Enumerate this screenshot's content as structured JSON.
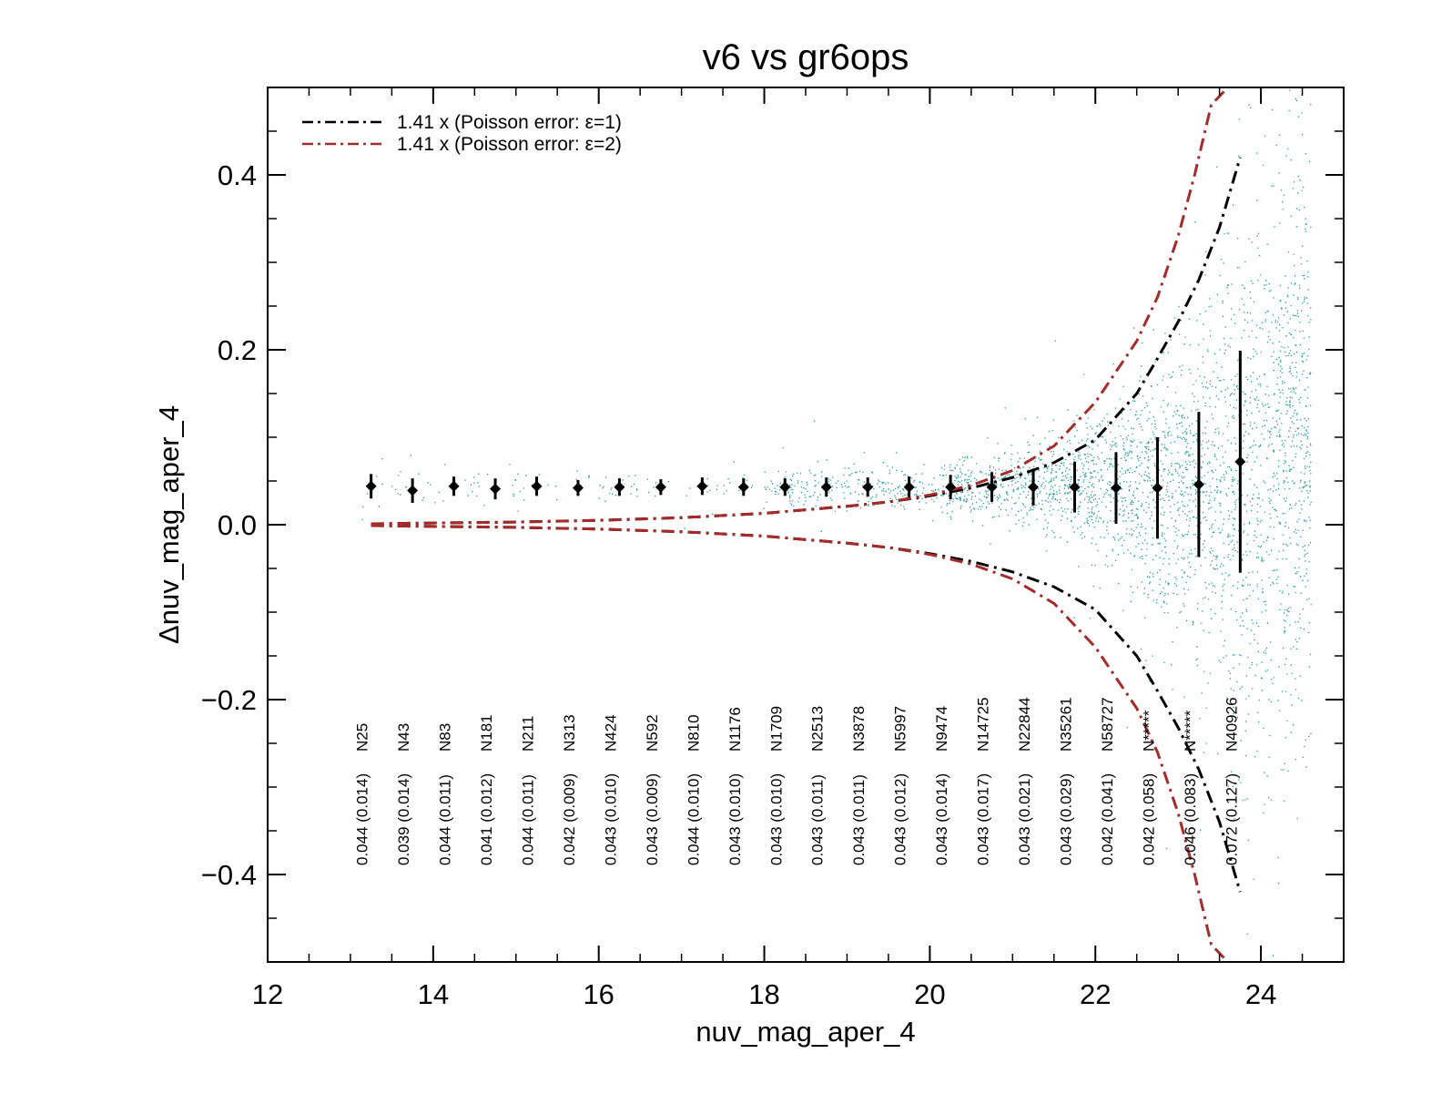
{
  "chart_data": {
    "type": "scatter",
    "title": "v6 vs gr6ops",
    "xlabel": "nuv_mag_aper_4",
    "ylabel": "Δnuv_mag_aper_4",
    "xlim": [
      12,
      25
    ],
    "ylim": [
      -0.5,
      0.5
    ],
    "x_ticks": [
      12,
      14,
      16,
      18,
      20,
      22,
      24
    ],
    "x_tick_labels": [
      "12",
      "14",
      "16",
      "18",
      "20",
      "22",
      "24"
    ],
    "y_ticks": [
      -0.4,
      -0.2,
      0.0,
      0.2,
      0.4
    ],
    "y_tick_labels": [
      "−0.4",
      "−0.2",
      "0.0",
      "0.2",
      "0.4"
    ],
    "x_minor_step": 0.5,
    "y_minor_step": 0.05,
    "grid": false,
    "scatter_color": "#008b8b",
    "legend_position": "top-left",
    "legend": [
      {
        "label": "1.41 x (Poisson error: ε=1)",
        "color": "#000000",
        "style": "dash-dot"
      },
      {
        "label": "1.41 x (Poisson error: ε=2)",
        "color": "#a52a2a",
        "style": "dash-dot"
      }
    ],
    "binned_points": [
      {
        "x": 13.25,
        "y": 0.044,
        "sigma": 0.014,
        "n_label": "N25",
        "label": "0.044 (0.014)"
      },
      {
        "x": 13.75,
        "y": 0.039,
        "sigma": 0.014,
        "n_label": "N43",
        "label": "0.039 (0.014)"
      },
      {
        "x": 14.25,
        "y": 0.044,
        "sigma": 0.011,
        "n_label": "N83",
        "label": "0.044 (0.011)"
      },
      {
        "x": 14.75,
        "y": 0.041,
        "sigma": 0.012,
        "n_label": "N181",
        "label": "0.041 (0.012)"
      },
      {
        "x": 15.25,
        "y": 0.044,
        "sigma": 0.011,
        "n_label": "N211",
        "label": "0.044 (0.011)"
      },
      {
        "x": 15.75,
        "y": 0.042,
        "sigma": 0.009,
        "n_label": "N313",
        "label": "0.042 (0.009)"
      },
      {
        "x": 16.25,
        "y": 0.043,
        "sigma": 0.01,
        "n_label": "N424",
        "label": "0.043 (0.010)"
      },
      {
        "x": 16.75,
        "y": 0.043,
        "sigma": 0.009,
        "n_label": "N592",
        "label": "0.043 (0.009)"
      },
      {
        "x": 17.25,
        "y": 0.044,
        "sigma": 0.01,
        "n_label": "N810",
        "label": "0.044 (0.010)"
      },
      {
        "x": 17.75,
        "y": 0.043,
        "sigma": 0.01,
        "n_label": "N1176",
        "label": "0.043 (0.010)"
      },
      {
        "x": 18.25,
        "y": 0.043,
        "sigma": 0.01,
        "n_label": "N1709",
        "label": "0.043 (0.010)"
      },
      {
        "x": 18.75,
        "y": 0.043,
        "sigma": 0.011,
        "n_label": "N2513",
        "label": "0.043 (0.011)"
      },
      {
        "x": 19.25,
        "y": 0.043,
        "sigma": 0.011,
        "n_label": "N3878",
        "label": "0.043 (0.011)"
      },
      {
        "x": 19.75,
        "y": 0.043,
        "sigma": 0.012,
        "n_label": "N5997",
        "label": "0.043 (0.012)"
      },
      {
        "x": 20.25,
        "y": 0.043,
        "sigma": 0.014,
        "n_label": "N9474",
        "label": "0.043 (0.014)"
      },
      {
        "x": 20.75,
        "y": 0.043,
        "sigma": 0.017,
        "n_label": "N14725",
        "label": "0.043 (0.017)"
      },
      {
        "x": 21.25,
        "y": 0.043,
        "sigma": 0.021,
        "n_label": "N22844",
        "label": "0.043 (0.021)"
      },
      {
        "x": 21.75,
        "y": 0.043,
        "sigma": 0.029,
        "n_label": "N35261",
        "label": "0.043 (0.029)"
      },
      {
        "x": 22.25,
        "y": 0.042,
        "sigma": 0.041,
        "n_label": "N58727",
        "label": "0.042 (0.041)"
      },
      {
        "x": 22.75,
        "y": 0.042,
        "sigma": 0.058,
        "n_label": "N*****",
        "label": "0.042 (0.058)"
      },
      {
        "x": 23.25,
        "y": 0.046,
        "sigma": 0.083,
        "n_label": "N*****",
        "label": "0.046 (0.083)"
      },
      {
        "x": 23.75,
        "y": 0.072,
        "sigma": 0.127,
        "n_label": "N40926",
        "label": "0.072 (0.127)"
      }
    ],
    "poisson_curves": [
      {
        "name": "1.41 x (Poisson error: ε=1)",
        "color": "#000000",
        "x": [
          13.25,
          14.0,
          15.0,
          16.0,
          17.0,
          18.0,
          19.0,
          19.5,
          20.0,
          20.5,
          21.0,
          21.5,
          22.0,
          22.5,
          22.75,
          23.0,
          23.25,
          23.5,
          23.75
        ],
        "y": [
          0.001,
          0.002,
          0.003,
          0.005,
          0.008,
          0.013,
          0.021,
          0.026,
          0.033,
          0.042,
          0.054,
          0.071,
          0.097,
          0.15,
          0.19,
          0.232,
          0.28,
          0.34,
          0.42
        ]
      },
      {
        "name": "1.41 x (Poisson error: ε=2)",
        "color": "#a52a2a",
        "x": [
          13.25,
          14.0,
          15.0,
          16.0,
          17.0,
          18.0,
          19.0,
          19.5,
          20.0,
          20.5,
          21.0,
          21.5,
          22.0,
          22.5,
          22.75,
          23.0,
          23.2,
          23.4,
          23.6
        ],
        "y": [
          0.001,
          0.002,
          0.003,
          0.005,
          0.008,
          0.013,
          0.021,
          0.026,
          0.034,
          0.045,
          0.062,
          0.09,
          0.14,
          0.21,
          0.26,
          0.33,
          0.4,
          0.48,
          0.55
        ]
      }
    ]
  }
}
